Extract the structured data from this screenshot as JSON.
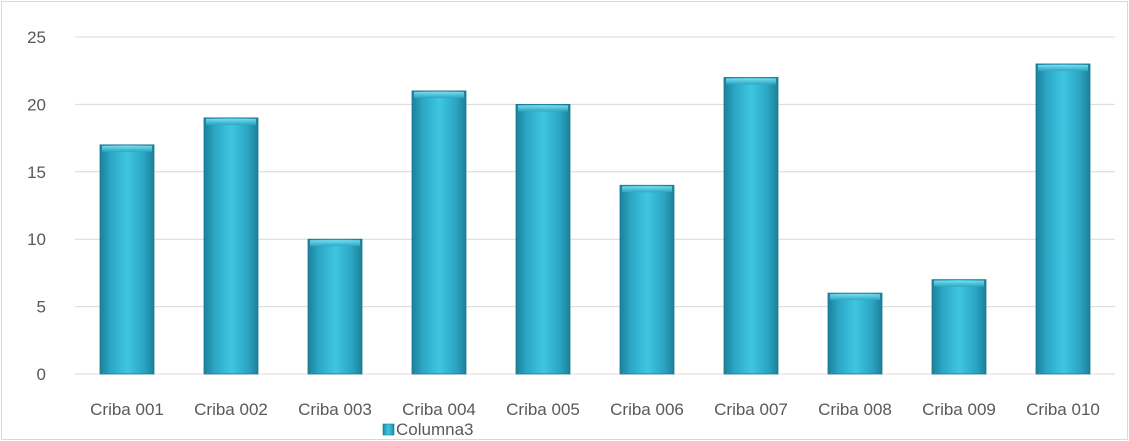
{
  "chart_data": {
    "type": "bar",
    "categories": [
      "Criba 001",
      "Criba 002",
      "Criba 003",
      "Criba 004",
      "Criba 005",
      "Criba 006",
      "Criba 007",
      "Criba 008",
      "Criba 009",
      "Criba 010"
    ],
    "series": [
      {
        "name": "Columna3",
        "values": [
          17,
          19,
          10,
          21,
          20,
          14,
          22,
          6,
          7,
          23
        ],
        "color": "#31b9d6"
      }
    ],
    "ylim": [
      0,
      25
    ],
    "yticks": [
      0,
      5,
      10,
      15,
      20,
      25
    ],
    "grid": true,
    "legend": "bottom",
    "title": "",
    "xlabel": "",
    "ylabel": ""
  }
}
